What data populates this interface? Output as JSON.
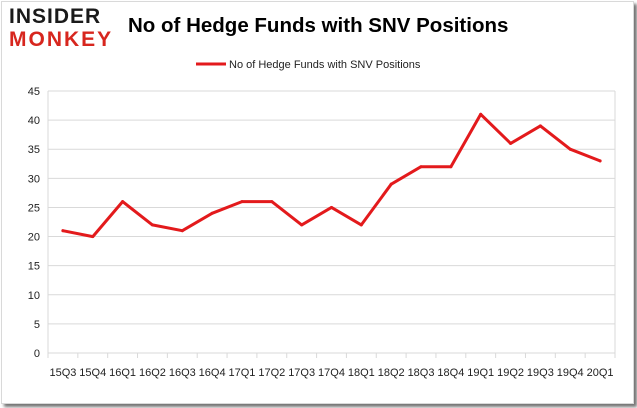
{
  "brand": {
    "line1": "INSIDER",
    "line2": "MONKEY"
  },
  "colors": {
    "series": "#e31a1c",
    "grid": "#d9d9d9",
    "brand_red": "#d7261e"
  },
  "chart_data": {
    "type": "line",
    "title": "No of Hedge Funds with SNV Positions",
    "xlabel": "",
    "ylabel": "",
    "ylim": [
      0,
      45
    ],
    "yticks": [
      0,
      5,
      10,
      15,
      20,
      25,
      30,
      35,
      40,
      45
    ],
    "grid": true,
    "legend_position": "top-center",
    "categories": [
      "15Q3",
      "15Q4",
      "16Q1",
      "16Q2",
      "16Q3",
      "16Q4",
      "17Q1",
      "17Q2",
      "17Q3",
      "17Q4",
      "18Q1",
      "18Q2",
      "18Q3",
      "18Q4",
      "19Q1",
      "19Q2",
      "19Q3",
      "19Q4",
      "20Q1"
    ],
    "series": [
      {
        "name": "No of Hedge Funds with SNV Positions",
        "values": [
          21,
          20,
          26,
          22,
          21,
          24,
          26,
          26,
          22,
          25,
          22,
          29,
          32,
          32,
          41,
          36,
          39,
          35,
          33
        ]
      }
    ]
  }
}
